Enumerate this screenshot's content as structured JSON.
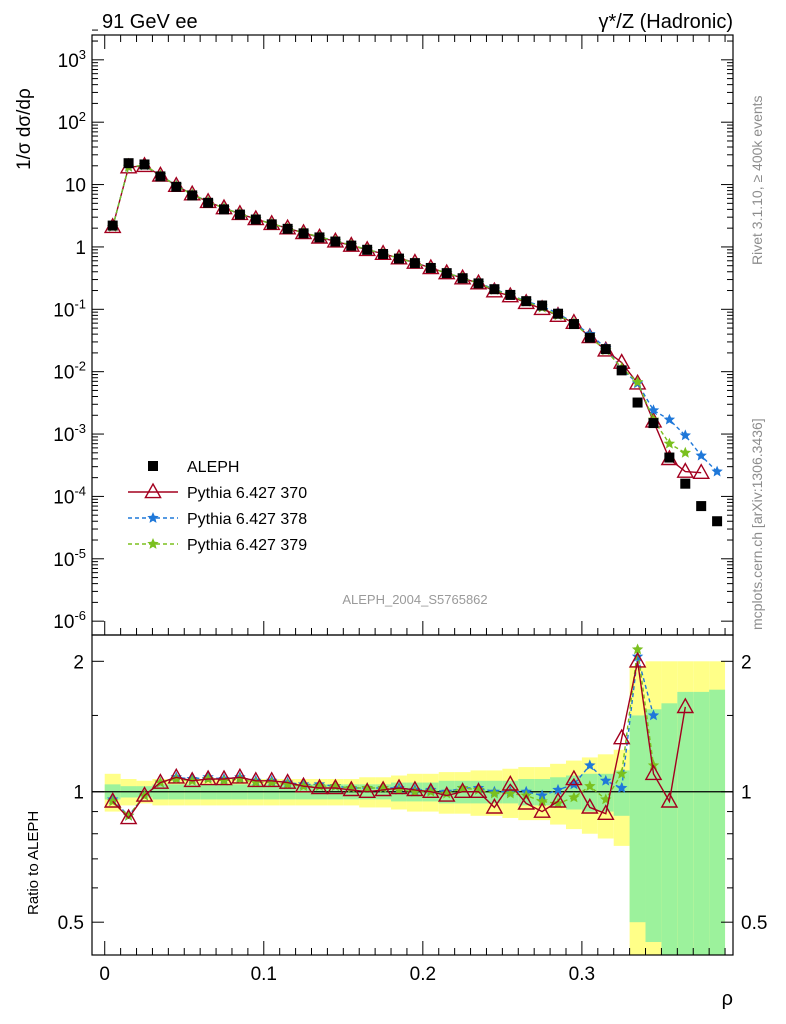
{
  "header": {
    "left": "91 GeV ee",
    "right": "γ*/Z (Hadronic)"
  },
  "side_text": {
    "rivet": "Rivet 3.1.10, ≥ 400k events",
    "mcplots": "mcplots.cern.ch [arXiv:1306.3436]"
  },
  "watermark": "ALEPH_2004_S5765862",
  "chart_data": [
    {
      "type": "scatter",
      "panel": "main",
      "ylabel": "1/σ dσ/dρ",
      "yscale": "log",
      "ylim": [
        6e-07,
        2500
      ],
      "xlim": [
        -0.008,
        0.395
      ],
      "y_tick_labels": [
        "10^-6",
        "10^-5",
        "10^-4",
        "10^-3",
        "10^-2",
        "10^-1",
        "1",
        "10",
        "10^2",
        "10^3"
      ],
      "x": [
        0.005,
        0.015,
        0.025,
        0.035,
        0.045,
        0.055,
        0.065,
        0.075,
        0.085,
        0.095,
        0.105,
        0.115,
        0.125,
        0.135,
        0.145,
        0.155,
        0.165,
        0.175,
        0.185,
        0.195,
        0.205,
        0.215,
        0.225,
        0.235,
        0.245,
        0.255,
        0.265,
        0.275,
        0.285,
        0.295,
        0.305,
        0.315,
        0.325,
        0.335,
        0.345,
        0.355,
        0.365,
        0.375,
        0.385
      ],
      "series": [
        {
          "name": "ALEPH",
          "color": "#000000",
          "marker": "square",
          "values": [
            2.2,
            22,
            21,
            13.5,
            9.2,
            6.7,
            5.1,
            4.0,
            3.3,
            2.75,
            2.3,
            1.95,
            1.65,
            1.42,
            1.22,
            1.05,
            0.9,
            0.77,
            0.65,
            0.55,
            0.46,
            0.38,
            0.315,
            0.26,
            0.21,
            0.17,
            0.135,
            0.115,
            0.085,
            0.058,
            0.035,
            0.023,
            0.0105,
            0.0032,
            0.0015,
            0.00042,
            0.00016,
            7e-05,
            4e-05
          ]
        },
        {
          "name": "Pythia 6.427 370",
          "color": "#a3001f",
          "marker": "triangle",
          "dash": "",
          "values": [
            2.1,
            19,
            20,
            14,
            9.6,
            7.0,
            5.3,
            4.2,
            3.4,
            2.8,
            2.35,
            2.0,
            1.68,
            1.42,
            1.23,
            1.05,
            0.9,
            0.78,
            0.66,
            0.56,
            0.46,
            0.38,
            0.315,
            0.262,
            0.195,
            0.163,
            0.127,
            0.102,
            0.079,
            0.061,
            0.036,
            0.022,
            0.014,
            0.0065,
            0.0016,
            0.0004,
            0.00025,
            0.00024
          ]
        },
        {
          "name": "Pythia 6.427 378",
          "color": "#1f78d9",
          "marker": "star",
          "dash": "4,3",
          "values": [
            2.1,
            19.2,
            20.3,
            14,
            9.7,
            7.0,
            5.3,
            4.2,
            3.4,
            2.8,
            2.35,
            2.0,
            1.7,
            1.45,
            1.25,
            1.07,
            0.91,
            0.78,
            0.66,
            0.55,
            0.46,
            0.38,
            0.32,
            0.265,
            0.21,
            0.17,
            0.135,
            0.112,
            0.086,
            0.06,
            0.04,
            0.024,
            0.011,
            0.0065,
            0.0024,
            0.0017,
            0.00095,
            0.00045,
            0.00025
          ]
        },
        {
          "name": "Pythia 6.427 379",
          "color": "#7bc01f",
          "marker": "star",
          "dash": "4,3",
          "values": [
            2.1,
            19.3,
            20.4,
            14.1,
            9.6,
            7.0,
            5.3,
            4.2,
            3.4,
            2.8,
            2.35,
            2.0,
            1.7,
            1.45,
            1.25,
            1.07,
            0.91,
            0.78,
            0.66,
            0.55,
            0.46,
            0.38,
            0.32,
            0.262,
            0.205,
            0.168,
            0.132,
            0.106,
            0.08,
            0.06,
            0.036,
            0.022,
            0.0115,
            0.0068,
            0.0017,
            0.0007,
            0.0005
          ]
        }
      ]
    },
    {
      "type": "line",
      "panel": "ratio",
      "ylabel": "Ratio to ALEPH",
      "xlabel": "ρ",
      "yscale": "log",
      "ylim": [
        0.42,
        2.3
      ],
      "y_tick_labels": [
        "0.5",
        "1",
        "2"
      ],
      "x_tick_labels": [
        "0",
        "0.1",
        "0.2",
        "0.3"
      ],
      "x_ticks": [
        0,
        0.1,
        0.2,
        0.3
      ],
      "band_inner": [
        0.04,
        0.03,
        0.03,
        0.04,
        0.04,
        0.04,
        0.04,
        0.04,
        0.04,
        0.04,
        0.04,
        0.04,
        0.04,
        0.04,
        0.04,
        0.04,
        0.04,
        0.04,
        0.05,
        0.05,
        0.05,
        0.06,
        0.06,
        0.06,
        0.06,
        0.06,
        0.07,
        0.07,
        0.08,
        0.09,
        0.1,
        0.1,
        0.12,
        0.5,
        0.55,
        0.6,
        0.7,
        0.7,
        0.72
      ],
      "band_outer": [
        0.1,
        0.07,
        0.06,
        0.07,
        0.07,
        0.07,
        0.07,
        0.07,
        0.07,
        0.07,
        0.07,
        0.07,
        0.07,
        0.07,
        0.07,
        0.07,
        0.08,
        0.08,
        0.09,
        0.1,
        0.1,
        0.11,
        0.11,
        0.12,
        0.12,
        0.13,
        0.14,
        0.14,
        0.16,
        0.18,
        0.2,
        0.22,
        0.25,
        0.95,
        1.0,
        1.0,
        1.0,
        1.0,
        1.0
      ],
      "series": [
        {
          "name": "Pythia 6.427 370",
          "values": [
            0.95,
            0.87,
            0.98,
            1.05,
            1.08,
            1.06,
            1.07,
            1.07,
            1.08,
            1.06,
            1.06,
            1.05,
            1.03,
            1.02,
            1.02,
            1.01,
            1.0,
            1.01,
            1.02,
            1.01,
            1.0,
            0.98,
            1.0,
            1.0,
            0.92,
            1.04,
            0.94,
            0.9,
            0.95,
            1.07,
            0.92,
            0.89,
            1.33,
            2.0,
            1.1,
            0.95,
            1.57
          ]
        },
        {
          "name": "Pythia 6.427 378",
          "values": [
            0.96,
            0.88,
            0.98,
            1.05,
            1.08,
            1.07,
            1.08,
            1.07,
            1.08,
            1.06,
            1.06,
            1.05,
            1.04,
            1.04,
            1.03,
            1.02,
            1.02,
            1.02,
            1.02,
            1.01,
            1.01,
            1.0,
            1.02,
            1.02,
            1.0,
            1.0,
            1.0,
            0.98,
            1.01,
            1.04,
            1.15,
            1.06,
            1.02,
            2.05,
            1.5
          ]
        },
        {
          "name": "Pythia 6.427 379",
          "values": [
            0.95,
            0.88,
            0.98,
            1.05,
            1.07,
            1.06,
            1.07,
            1.06,
            1.07,
            1.05,
            1.05,
            1.04,
            1.03,
            1.03,
            1.03,
            1.02,
            1.02,
            1.02,
            1.01,
            1.0,
            1.0,
            0.99,
            1.02,
            1.01,
            0.99,
            0.99,
            0.98,
            0.95,
            0.94,
            0.97,
            1.03,
            0.96,
            1.1,
            2.13,
            1.15
          ]
        }
      ]
    }
  ]
}
